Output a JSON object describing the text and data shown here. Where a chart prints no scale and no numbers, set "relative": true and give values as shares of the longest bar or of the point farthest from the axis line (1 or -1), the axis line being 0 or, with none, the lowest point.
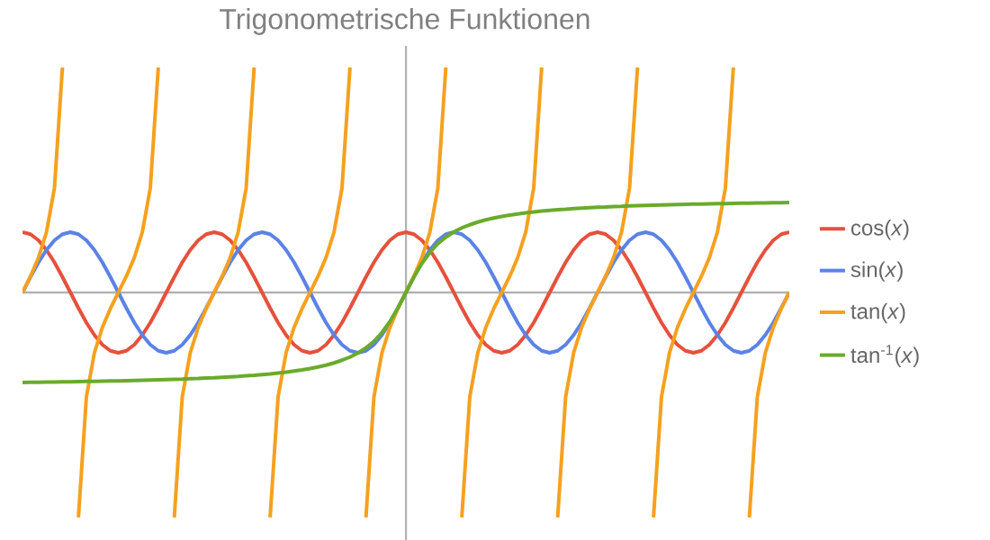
{
  "chart_data": {
    "type": "line",
    "title": "Trigonometrische Funktionen",
    "relative": true,
    "legend": "right",
    "categories": [
      null,
      null,
      null,
      null,
      null,
      null,
      null,
      null,
      null,
      null,
      null,
      null,
      null,
      null,
      null,
      null,
      null,
      null,
      null,
      null,
      null,
      null,
      null,
      null,
      null,
      null,
      null,
      null,
      null,
      null,
      null,
      null,
      null,
      null,
      null,
      null,
      null,
      null,
      null,
      null,
      null,
      null,
      null,
      null,
      null,
      null,
      null,
      null,
      null,
      null,
      null,
      null,
      null,
      null,
      null,
      null,
      null,
      null,
      null,
      null,
      null,
      null,
      null,
      null,
      null,
      null,
      null,
      null,
      null,
      null,
      null,
      null,
      null,
      null,
      null,
      null,
      null,
      null,
      null,
      null,
      null,
      null,
      null,
      null,
      null,
      null,
      null,
      null,
      null,
      null,
      null,
      null,
      null,
      null,
      null,
      null,
      null
    ],
    "series": [
      {
        "name": "cos(*x*)",
        "color": "#e6513c",
        "values": [
          0.268,
          0.259,
          0.232,
          0.189,
          0.134,
          0.069,
          0,
          -0.069,
          -0.134,
          -0.189,
          -0.232,
          -0.259,
          -0.268,
          -0.259,
          -0.232,
          -0.189,
          -0.134,
          -0.069,
          0,
          0.069,
          0.134,
          0.189,
          0.232,
          0.259,
          0.268,
          0.259,
          0.232,
          0.189,
          0.134,
          0.069,
          0,
          -0.069,
          -0.134,
          -0.189,
          -0.232,
          -0.259,
          -0.268,
          -0.259,
          -0.232,
          -0.189,
          -0.134,
          -0.069,
          0,
          0.069,
          0.134,
          0.189,
          0.232,
          0.259,
          0.268,
          0.259,
          0.232,
          0.189,
          0.134,
          0.069,
          0,
          -0.069,
          -0.134,
          -0.189,
          -0.232,
          -0.259,
          -0.268,
          -0.259,
          -0.232,
          -0.189,
          -0.134,
          -0.069,
          0,
          0.069,
          0.134,
          0.189,
          0.232,
          0.259,
          0.268,
          0.259,
          0.232,
          0.189,
          0.134,
          0.069,
          0,
          -0.069,
          -0.134,
          -0.189,
          -0.232,
          -0.259,
          -0.268,
          -0.259,
          -0.232,
          -0.189,
          -0.134,
          -0.069,
          0,
          0.069,
          0.134,
          0.189,
          0.232,
          0.259,
          0.268
        ]
      },
      {
        "name": "sin(*x*)",
        "color": "#5b83e6",
        "values": [
          0,
          0.069,
          0.134,
          0.189,
          0.232,
          0.259,
          0.268,
          0.259,
          0.232,
          0.189,
          0.134,
          0.069,
          0,
          -0.069,
          -0.134,
          -0.189,
          -0.232,
          -0.259,
          -0.268,
          -0.259,
          -0.232,
          -0.189,
          -0.134,
          -0.069,
          0,
          0.069,
          0.134,
          0.189,
          0.232,
          0.259,
          0.268,
          0.259,
          0.232,
          0.189,
          0.134,
          0.069,
          0,
          -0.069,
          -0.134,
          -0.189,
          -0.232,
          -0.259,
          -0.268,
          -0.259,
          -0.232,
          -0.189,
          -0.134,
          -0.069,
          0,
          0.069,
          0.134,
          0.189,
          0.232,
          0.259,
          0.268,
          0.259,
          0.232,
          0.189,
          0.134,
          0.069,
          0,
          -0.069,
          -0.134,
          -0.189,
          -0.232,
          -0.259,
          -0.268,
          -0.259,
          -0.232,
          -0.189,
          -0.134,
          -0.069,
          0,
          0.069,
          0.134,
          0.189,
          0.232,
          0.259,
          0.268,
          0.259,
          0.232,
          0.189,
          0.134,
          0.069,
          0,
          -0.069,
          -0.134,
          -0.189,
          -0.232,
          -0.259,
          -0.268,
          -0.259,
          -0.232,
          -0.189,
          -0.134,
          -0.069,
          0
        ]
      },
      {
        "name": "tan(*x*)",
        "color": "#f5a11f",
        "values": [
          0,
          0.072,
          0.155,
          0.268,
          0.464,
          1,
          null,
          -1,
          -0.464,
          -0.268,
          -0.155,
          -0.072,
          0,
          0.072,
          0.155,
          0.268,
          0.464,
          1,
          null,
          -1,
          -0.464,
          -0.268,
          -0.155,
          -0.072,
          0,
          0.072,
          0.155,
          0.268,
          0.464,
          1,
          null,
          -1,
          -0.464,
          -0.268,
          -0.155,
          -0.072,
          0,
          0.072,
          0.155,
          0.268,
          0.464,
          1,
          null,
          -1,
          -0.464,
          -0.268,
          -0.155,
          -0.072,
          0,
          0.072,
          0.155,
          0.268,
          0.464,
          1,
          null,
          -1,
          -0.464,
          -0.268,
          -0.155,
          -0.072,
          0,
          0.072,
          0.155,
          0.268,
          0.464,
          1,
          null,
          -1,
          -0.464,
          -0.268,
          -0.155,
          -0.072,
          0,
          0.072,
          0.155,
          0.268,
          0.464,
          1,
          null,
          -1,
          -0.464,
          -0.268,
          -0.155,
          -0.072,
          0,
          0.072,
          0.155,
          0.268,
          0.464,
          1,
          null,
          -1,
          -0.464,
          -0.268,
          -0.155,
          -0.072,
          0
        ]
      },
      {
        "name": "tan$^{-1}$(*x*)",
        "color": "#6aab2b",
        "values": [
          -0.4,
          -0.399,
          -0.399,
          -0.398,
          -0.398,
          -0.397,
          -0.397,
          -0.396,
          -0.395,
          -0.395,
          -0.394,
          -0.393,
          -0.393,
          -0.392,
          -0.391,
          -0.39,
          -0.389,
          -0.388,
          -0.387,
          -0.386,
          -0.385,
          -0.383,
          -0.382,
          -0.38,
          -0.379,
          -0.377,
          -0.375,
          -0.373,
          -0.37,
          -0.368,
          -0.365,
          -0.362,
          -0.358,
          -0.354,
          -0.349,
          -0.344,
          -0.338,
          -0.331,
          -0.323,
          -0.313,
          -0.301,
          -0.287,
          -0.269,
          -0.246,
          -0.217,
          -0.178,
          -0.129,
          -0.069,
          0,
          0.069,
          0.129,
          0.178,
          0.217,
          0.246,
          0.269,
          0.287,
          0.301,
          0.313,
          0.323,
          0.331,
          0.338,
          0.344,
          0.349,
          0.354,
          0.358,
          0.362,
          0.365,
          0.368,
          0.37,
          0.373,
          0.375,
          0.377,
          0.379,
          0.38,
          0.382,
          0.383,
          0.385,
          0.386,
          0.387,
          0.388,
          0.389,
          0.39,
          0.391,
          0.392,
          0.393,
          0.393,
          0.394,
          0.395,
          0.395,
          0.396,
          0.397,
          0.397,
          0.398,
          0.398,
          0.399,
          0.399,
          0.4
        ]
      }
    ]
  }
}
